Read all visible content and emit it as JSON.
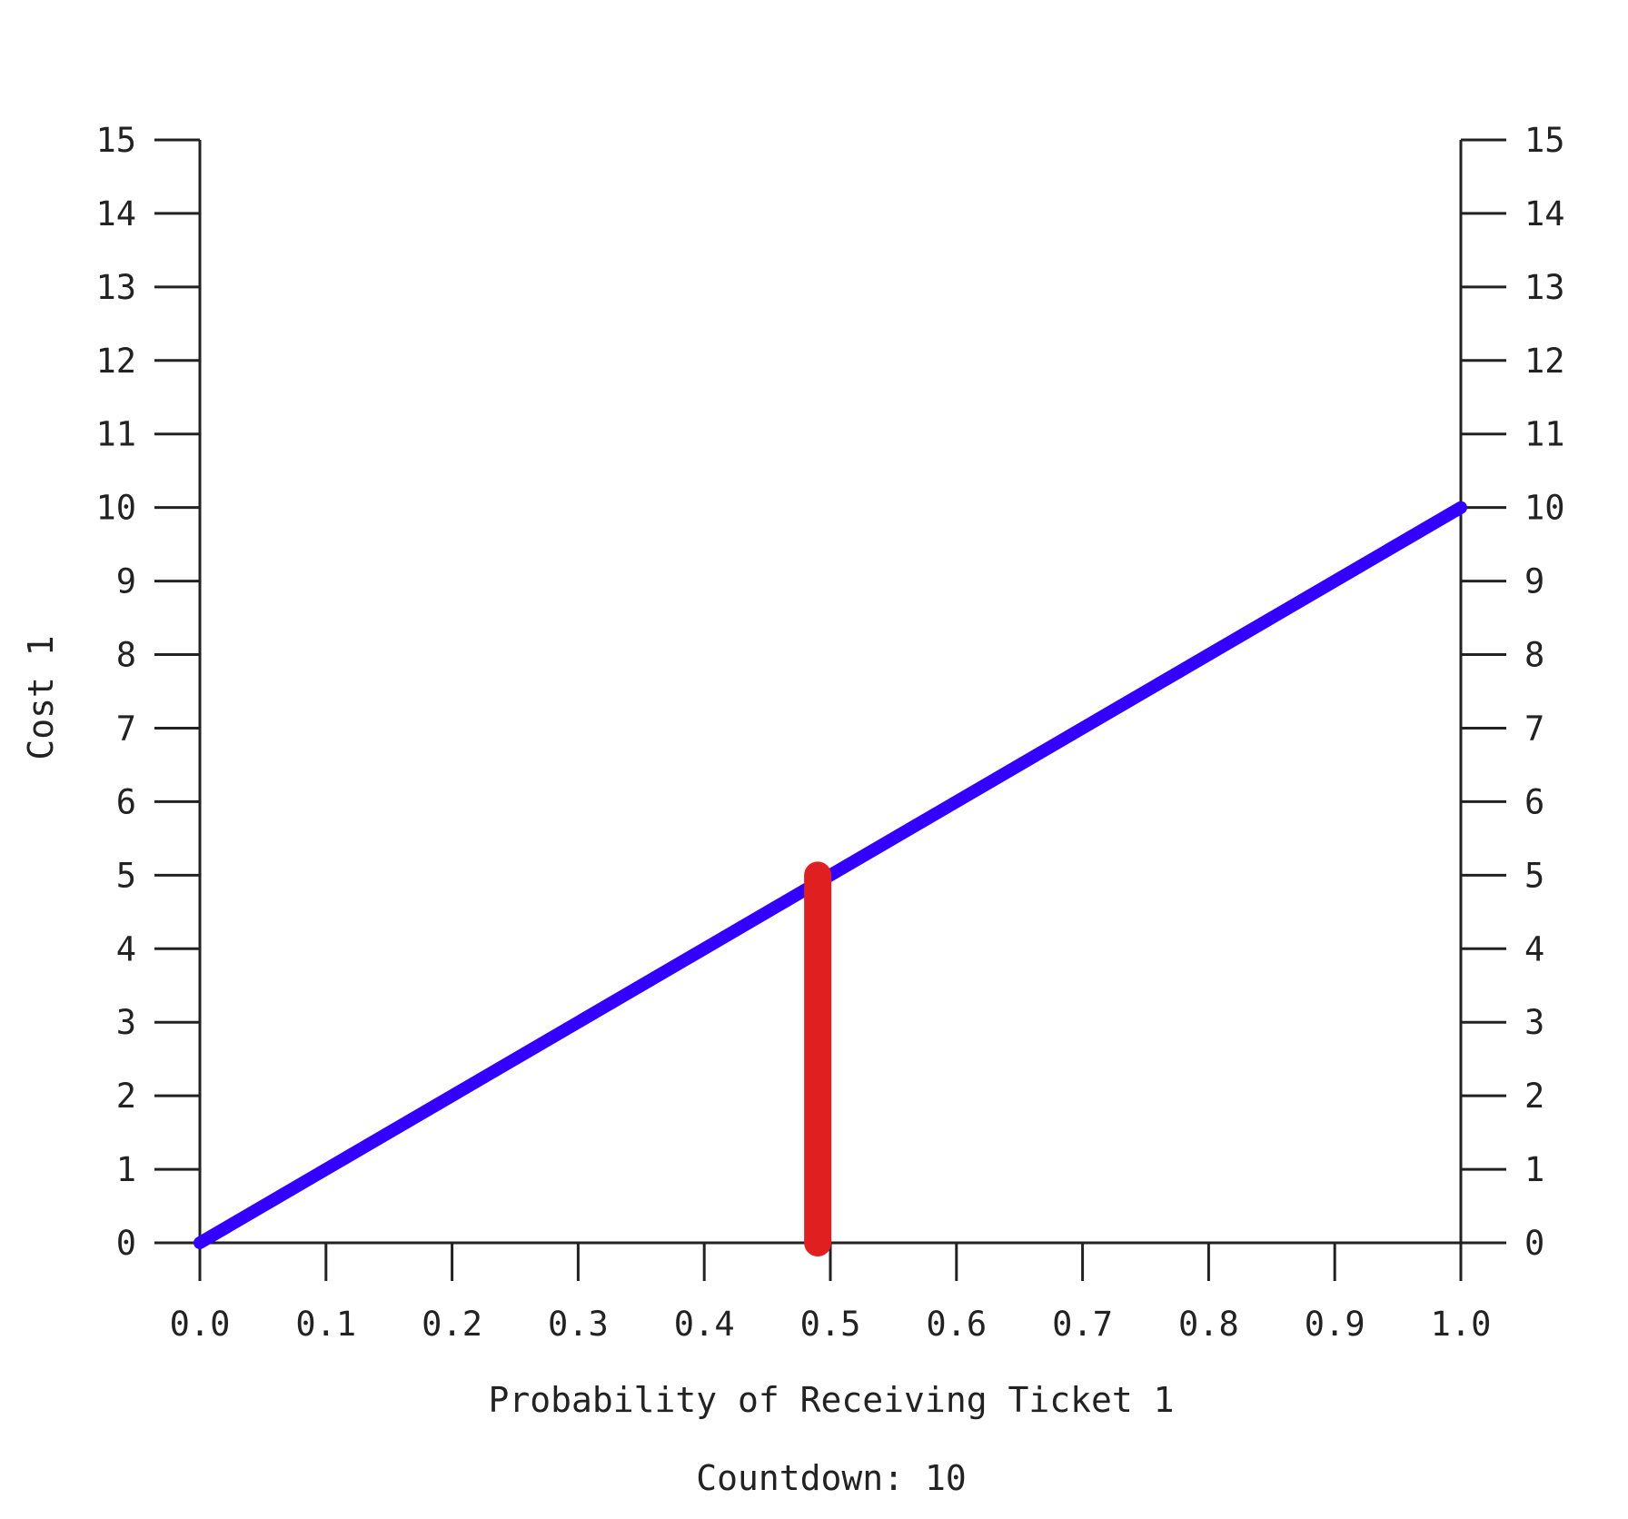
{
  "chart_data": {
    "type": "line",
    "xlabel": "Probability of Receiving Ticket 1",
    "ylabel": "Cost 1",
    "xlim": [
      0.0,
      1.0
    ],
    "ylim": [
      0,
      15
    ],
    "x_ticks": [
      "0.0",
      "0.1",
      "0.2",
      "0.3",
      "0.4",
      "0.5",
      "0.6",
      "0.7",
      "0.8",
      "0.9",
      "1.0"
    ],
    "y_ticks": [
      "0",
      "1",
      "2",
      "3",
      "4",
      "5",
      "6",
      "7",
      "8",
      "9",
      "10",
      "11",
      "12",
      "13",
      "14",
      "15"
    ],
    "right_y_axis": true,
    "grid": false,
    "series": [
      {
        "x": [
          0.0,
          1.0
        ],
        "y": [
          0,
          10
        ],
        "color": "#3300ff"
      }
    ],
    "marker": {
      "x": 0.49,
      "y_from": 0,
      "y_to": 5,
      "color": "#e02020"
    }
  },
  "footer": {
    "countdown_text": "Countdown: 10"
  }
}
